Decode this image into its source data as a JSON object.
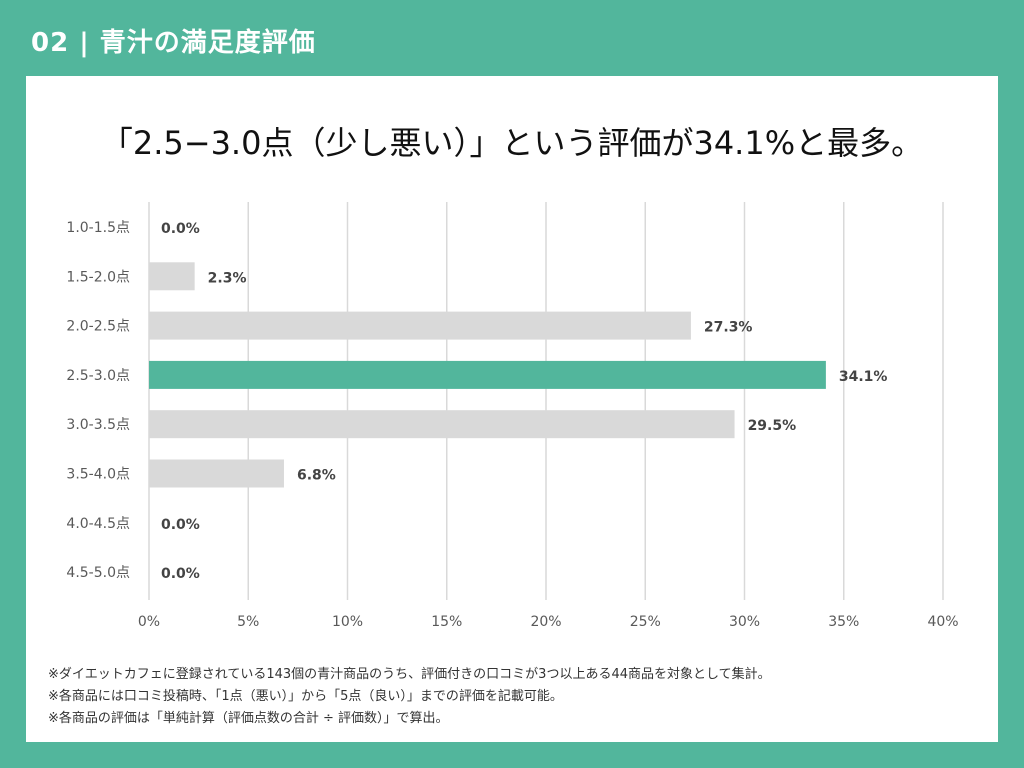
{
  "header": {
    "title": "02 | 青汁の満足度評価"
  },
  "headline": "「2.5−3.0点（少し悪い）」という評価が34.1%と最多。",
  "chart_data": {
    "type": "bar",
    "orientation": "horizontal",
    "categories": [
      "1.0-1.5点",
      "1.5-2.0点",
      "2.0-2.5点",
      "2.5-3.0点",
      "3.0-3.5点",
      "3.5-4.0点",
      "4.0-4.5点",
      "4.5-5.0点"
    ],
    "values": [
      0.0,
      2.3,
      27.3,
      34.1,
      29.5,
      6.8,
      0.0,
      0.0
    ],
    "value_labels": [
      "0.0%",
      "2.3%",
      "27.3%",
      "34.1%",
      "29.5%",
      "6.8%",
      "0.0%",
      "0.0%"
    ],
    "xlim": [
      0,
      40
    ],
    "x_ticks": [
      "0%",
      "5%",
      "10%",
      "15%",
      "20%",
      "25%",
      "30%",
      "35%",
      "40%"
    ],
    "highlight_index": 3,
    "grid": true,
    "colors": {
      "bar": "#d9d9d9",
      "highlight": "#52b69c",
      "grid": "#d9d9d9"
    }
  },
  "footnotes": [
    "※ダイエットカフェに登録されている143個の青汁商品のうち、評価付きの口コミが3つ以上ある44商品を対象として集計。",
    "※各商品には口コミ投稿時、「1点（悪い）」から「5点（良い）」までの評価を記載可能。",
    "※各商品の評価は「単純計算（評価点数の合計 ÷ 評価数）」で算出。"
  ]
}
